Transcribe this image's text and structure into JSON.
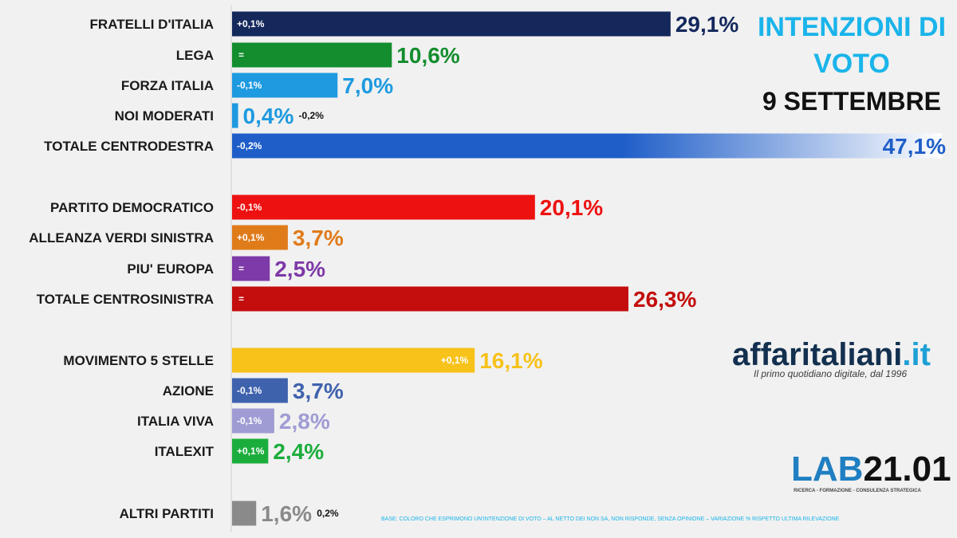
{
  "title": {
    "line1": "INTENZIONI DI",
    "line2": "VOTO",
    "date": "9 SETTEMBRE"
  },
  "logos": {
    "affaritaliani_main": "affaritaliani",
    "affaritaliani_tld": ".it",
    "affaritaliani_tagline": "Il primo quotidiano digitale, dal 1996",
    "lab_prefix": "LAB",
    "lab_number": "21.01",
    "lab_tagline": "RICERCA - FORMAZIONE - CONSULENZA STRATEGICA"
  },
  "footnote": "BASE: COLORO CHE ESPRIMONO UN'INTENZIONE DI VOTO – AL NETTO DEI NON SA, NON RISPONDE, SENZA OPINIONE – VARIAZIONE % RISPETTO ULTIMA RILEVAZIONE",
  "chart_data": {
    "type": "bar",
    "orientation": "horizontal",
    "categories": [
      "FRATELLI D'ITALIA",
      "LEGA",
      "FORZA ITALIA",
      "NOI MODERATI",
      "TOTALE CENTRODESTRA",
      "PARTITO DEMOCRATICO",
      "ALLEANZA VERDI SINISTRA",
      "PIU' EUROPA",
      "TOTALE CENTROSINISTRA",
      "MOVIMENTO 5 STELLE",
      "AZIONE",
      "ITALIA VIVA",
      "ITALEXIT",
      "ALTRI PARTITI"
    ],
    "values": [
      29.1,
      10.6,
      7.0,
      0.4,
      47.1,
      20.1,
      3.7,
      2.5,
      26.3,
      16.1,
      3.7,
      2.8,
      2.4,
      1.6
    ],
    "value_labels": [
      "29,1%",
      "10,6%",
      "7,0%",
      "0,4%",
      "47,1%",
      "20,1%",
      "3,7%",
      "2,5%",
      "26,3%",
      "16,1%",
      "3,7%",
      "2,8%",
      "2,4%",
      "1,6%"
    ],
    "changes": [
      "+0,1%",
      "=",
      "-0,1%",
      "-0,2%",
      "-0,2%",
      "-0,1%",
      "+0,1%",
      "=",
      "=",
      "+0,1%",
      "-0,1%",
      "-0,1%",
      "+0,1%",
      "0,2%"
    ],
    "colors": [
      "#14285c",
      "#138d2e",
      "#1e9ae0",
      "#1e9ae0",
      "#1f5ec8",
      "#ee1111",
      "#e07b1a",
      "#7e3aa8",
      "#c40d0d",
      "#f7c21a",
      "#3f62ad",
      "#9f9cd4",
      "#1bad3c",
      "#8a8a8a"
    ],
    "gradient_to": [
      null,
      null,
      null,
      null,
      "#ffffff",
      null,
      null,
      null,
      null,
      null,
      null,
      null,
      null,
      null
    ],
    "xlim": [
      0,
      47.1
    ],
    "grid": false,
    "legend": "none"
  }
}
